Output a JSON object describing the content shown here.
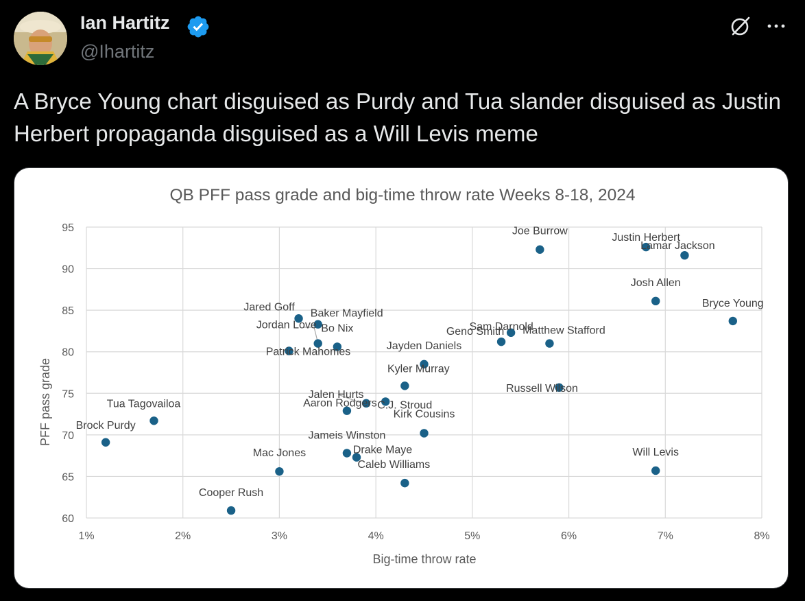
{
  "author": {
    "name": "Ian Hartitz",
    "handle": "@Ihartitz"
  },
  "icons": {
    "verified": "verified-badge-icon",
    "grok": "grok-icon",
    "more": "more-options-icon"
  },
  "colors": {
    "background": "#000000",
    "text": "#e7e9ea",
    "muted": "#71767b",
    "verified": "#1d9bf0",
    "dot": "#1a6188"
  },
  "tweet": {
    "text": "A Bryce Young chart disguised as Purdy and Tua slander disguised as Justin Herbert propaganda disguised as a Will Levis meme"
  },
  "chart_data": {
    "type": "scatter",
    "title": "QB PFF pass grade and big-time throw rate Weeks 8-18, 2024",
    "xlabel": "Big-time throw rate",
    "ylabel": "PFF pass grade",
    "xlim": [
      1,
      8
    ],
    "ylim": [
      60,
      95
    ],
    "xticks": [
      "1%",
      "2%",
      "3%",
      "4%",
      "5%",
      "6%",
      "7%",
      "8%"
    ],
    "yticks": [
      "60",
      "65",
      "70",
      "75",
      "80",
      "85",
      "90",
      "95"
    ],
    "grid": true,
    "points": [
      {
        "name": "Joe Burrow",
        "x": 5.7,
        "y": 92.3
      },
      {
        "name": "Justin Herbert",
        "x": 6.8,
        "y": 92.6
      },
      {
        "name": "Lamar Jackson",
        "x": 7.2,
        "y": 91.6
      },
      {
        "name": "Josh Allen",
        "x": 6.9,
        "y": 86.1
      },
      {
        "name": "Bryce Young",
        "x": 7.7,
        "y": 83.7
      },
      {
        "name": "Sam Darnold",
        "x": 5.4,
        "y": 82.3
      },
      {
        "name": "Geno Smith",
        "x": 5.3,
        "y": 81.2
      },
      {
        "name": "Matthew Stafford",
        "x": 5.8,
        "y": 81.0
      },
      {
        "name": "Jared Goff",
        "x": 3.2,
        "y": 84.0
      },
      {
        "name": "Baker Mayfield",
        "x": 3.4,
        "y": 83.3
      },
      {
        "name": "Jordan Love",
        "x": 3.4,
        "y": 81.0
      },
      {
        "name": "Bo Nix",
        "x": 3.6,
        "y": 80.6
      },
      {
        "name": "Patrick Mahomes",
        "x": 3.1,
        "y": 80.1
      },
      {
        "name": "Jayden Daniels",
        "x": 4.5,
        "y": 78.5
      },
      {
        "name": "Kyler Murray",
        "x": 4.3,
        "y": 75.9
      },
      {
        "name": "Russell Wilson",
        "x": 5.9,
        "y": 75.7
      },
      {
        "name": "Jalen Hurts",
        "x": 3.9,
        "y": 73.8
      },
      {
        "name": "C.J. Stroud",
        "x": 4.1,
        "y": 74.0
      },
      {
        "name": "Aaron Rodgers",
        "x": 3.7,
        "y": 72.9
      },
      {
        "name": "Kirk Cousins",
        "x": 4.5,
        "y": 70.2
      },
      {
        "name": "Tua Tagovailoa",
        "x": 1.7,
        "y": 71.7
      },
      {
        "name": "Brock Purdy",
        "x": 1.2,
        "y": 69.1
      },
      {
        "name": "Jameis Winston",
        "x": 3.7,
        "y": 67.8
      },
      {
        "name": "Drake Maye",
        "x": 3.8,
        "y": 67.3
      },
      {
        "name": "Mac Jones",
        "x": 3.0,
        "y": 65.6
      },
      {
        "name": "Will Levis",
        "x": 6.9,
        "y": 65.7
      },
      {
        "name": "Caleb Williams",
        "x": 4.3,
        "y": 64.2
      },
      {
        "name": "Cooper Rush",
        "x": 2.5,
        "y": 60.9
      }
    ]
  }
}
